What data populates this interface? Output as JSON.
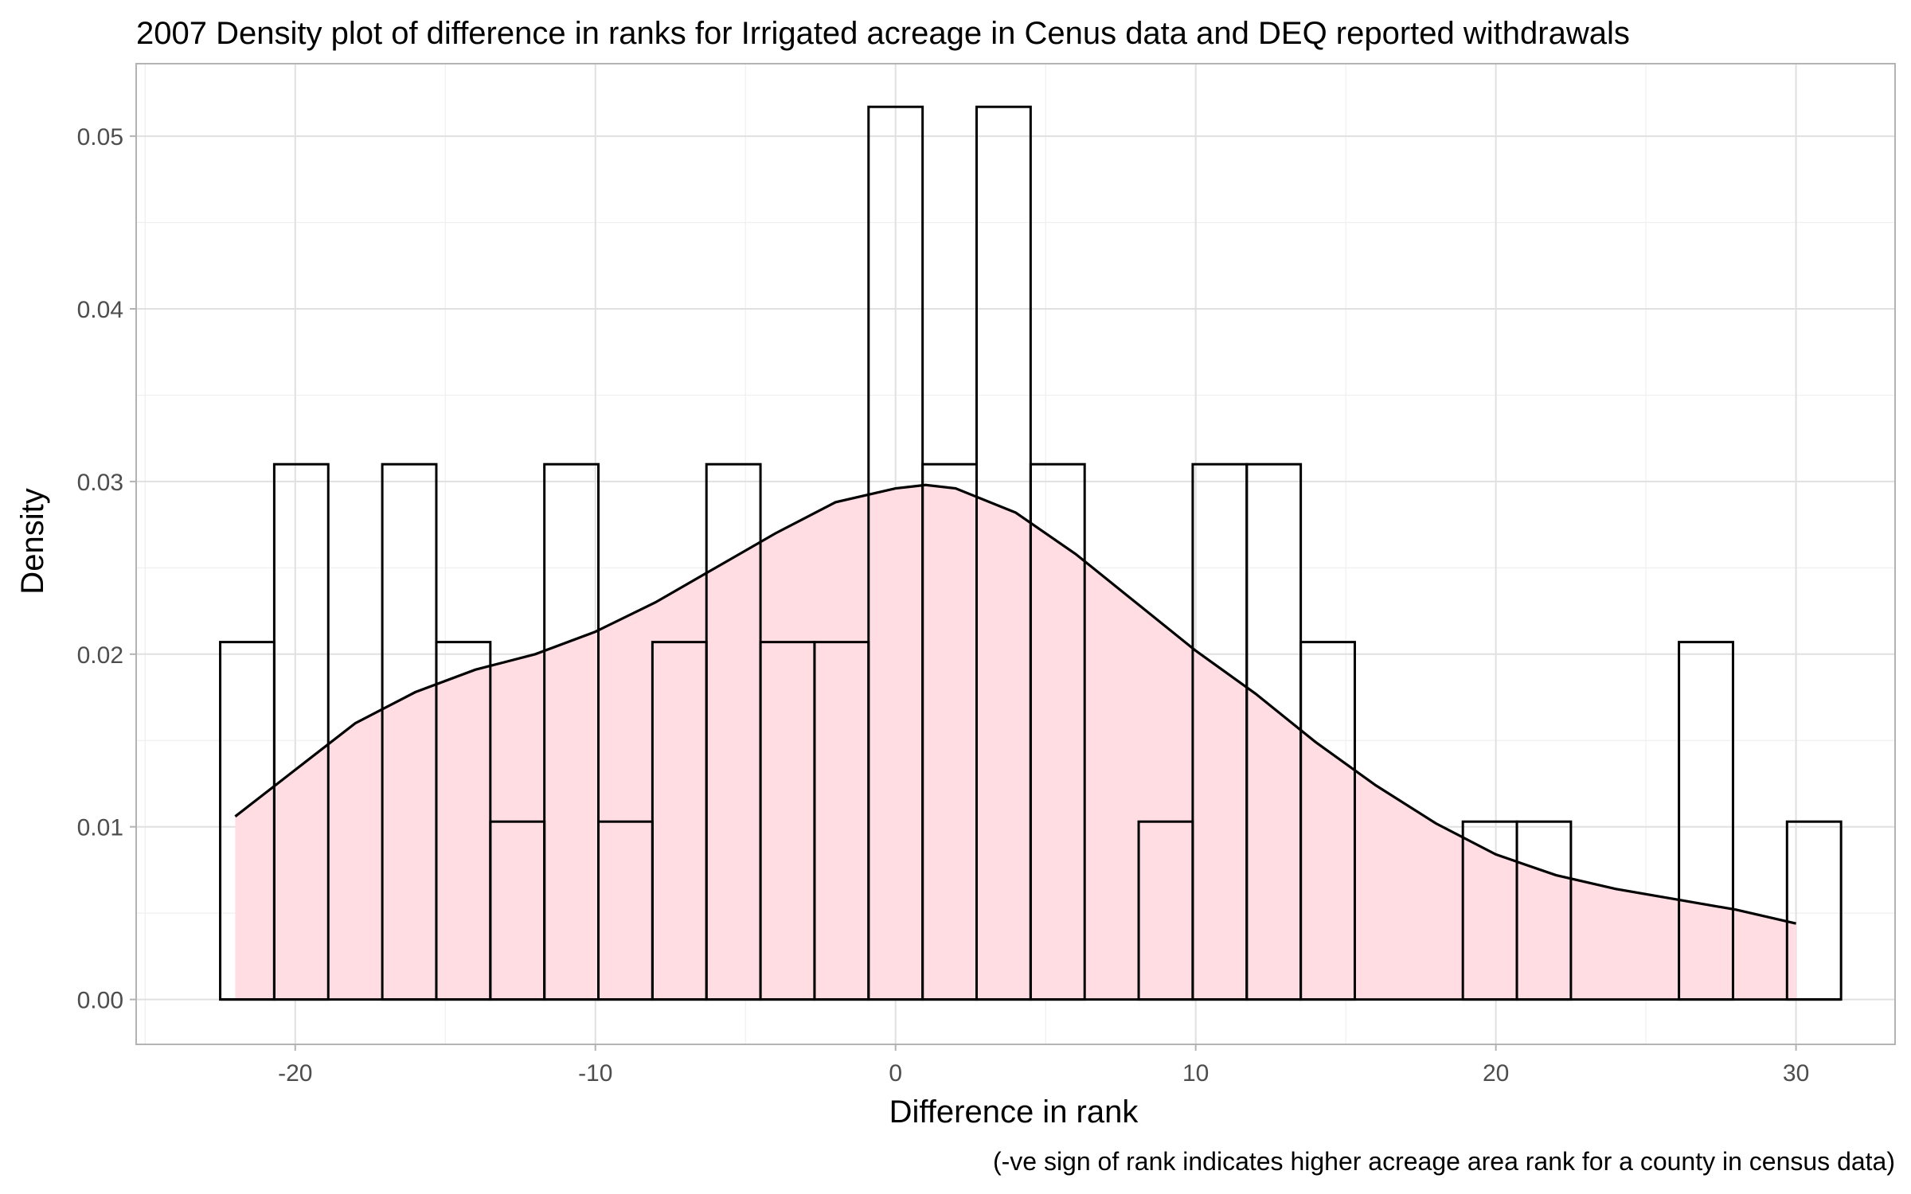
{
  "chart_data": {
    "type": "histogram-density",
    "title": "2007 Density plot of difference in ranks for Irrigated acreage in Cenus data and DEQ reported withdrawals",
    "xlabel": "Difference in rank",
    "ylabel": "Density",
    "caption": "(-ve sign of rank indicates higher acreage area rank for a county in census data)",
    "xlim": [
      -25.3,
      33.3
    ],
    "ylim": [
      -0.0026,
      0.0542
    ],
    "x_ticks": [
      -20,
      -10,
      0,
      10,
      20,
      30
    ],
    "x_tick_labels": [
      "-20",
      "-10",
      "0",
      "10",
      "20",
      "30"
    ],
    "y_ticks": [
      0.0,
      0.01,
      0.02,
      0.03,
      0.04,
      0.05
    ],
    "y_tick_labels": [
      "0.00",
      "0.01",
      "0.02",
      "0.03",
      "0.04",
      "0.05"
    ],
    "grid": true,
    "bin_width": 1.8,
    "bins": [
      {
        "x_start": -22.5,
        "x_end": -20.7,
        "density": 0.0207
      },
      {
        "x_start": -20.7,
        "x_end": -18.9,
        "density": 0.031
      },
      {
        "x_start": -18.9,
        "x_end": -17.1,
        "density": 0.0
      },
      {
        "x_start": -17.1,
        "x_end": -15.3,
        "density": 0.031
      },
      {
        "x_start": -15.3,
        "x_end": -13.5,
        "density": 0.0207
      },
      {
        "x_start": -13.5,
        "x_end": -11.7,
        "density": 0.0103
      },
      {
        "x_start": -11.7,
        "x_end": -9.9,
        "density": 0.031
      },
      {
        "x_start": -9.9,
        "x_end": -8.1,
        "density": 0.0103
      },
      {
        "x_start": -8.1,
        "x_end": -6.3,
        "density": 0.0207
      },
      {
        "x_start": -6.3,
        "x_end": -4.5,
        "density": 0.031
      },
      {
        "x_start": -4.5,
        "x_end": -2.7,
        "density": 0.0207
      },
      {
        "x_start": -2.7,
        "x_end": -0.9,
        "density": 0.0207
      },
      {
        "x_start": -0.9,
        "x_end": 0.9,
        "density": 0.0517
      },
      {
        "x_start": 0.9,
        "x_end": 2.7,
        "density": 0.031
      },
      {
        "x_start": 2.7,
        "x_end": 4.5,
        "density": 0.0517
      },
      {
        "x_start": 4.5,
        "x_end": 6.3,
        "density": 0.031
      },
      {
        "x_start": 6.3,
        "x_end": 8.1,
        "density": 0.0
      },
      {
        "x_start": 8.1,
        "x_end": 9.9,
        "density": 0.0103
      },
      {
        "x_start": 9.9,
        "x_end": 11.7,
        "density": 0.031
      },
      {
        "x_start": 11.7,
        "x_end": 13.5,
        "density": 0.031
      },
      {
        "x_start": 13.5,
        "x_end": 15.3,
        "density": 0.0207
      },
      {
        "x_start": 15.3,
        "x_end": 17.1,
        "density": 0.0
      },
      {
        "x_start": 17.1,
        "x_end": 18.9,
        "density": 0.0
      },
      {
        "x_start": 18.9,
        "x_end": 20.7,
        "density": 0.0103
      },
      {
        "x_start": 20.7,
        "x_end": 22.5,
        "density": 0.0103
      },
      {
        "x_start": 22.5,
        "x_end": 24.3,
        "density": 0.0
      },
      {
        "x_start": 24.3,
        "x_end": 26.1,
        "density": 0.0
      },
      {
        "x_start": 26.1,
        "x_end": 27.9,
        "density": 0.0207
      },
      {
        "x_start": 27.9,
        "x_end": 29.7,
        "density": 0.0
      },
      {
        "x_start": 29.7,
        "x_end": 31.5,
        "density": 0.0103
      }
    ],
    "density_curve": {
      "x": [
        -22,
        -20,
        -18,
        -16,
        -14,
        -12,
        -10,
        -8,
        -6,
        -4,
        -2,
        0,
        1,
        2,
        4,
        6,
        8,
        10,
        12,
        14,
        16,
        18,
        20,
        22,
        24,
        26,
        28,
        30
      ],
      "y": [
        0.0106,
        0.0133,
        0.016,
        0.0178,
        0.0191,
        0.02,
        0.0213,
        0.023,
        0.025,
        0.027,
        0.0288,
        0.0296,
        0.0298,
        0.0296,
        0.0282,
        0.0258,
        0.023,
        0.0202,
        0.0177,
        0.0149,
        0.0124,
        0.0102,
        0.0084,
        0.0072,
        0.0064,
        0.0058,
        0.0052,
        0.0044
      ]
    },
    "colors": {
      "density_fill": "#ffdde2",
      "density_line": "#000000",
      "bar_fill": "#ffffff",
      "bar_outline": "#000000",
      "panel_border": "#b3b3b3",
      "grid": "#e0e0e0"
    }
  }
}
